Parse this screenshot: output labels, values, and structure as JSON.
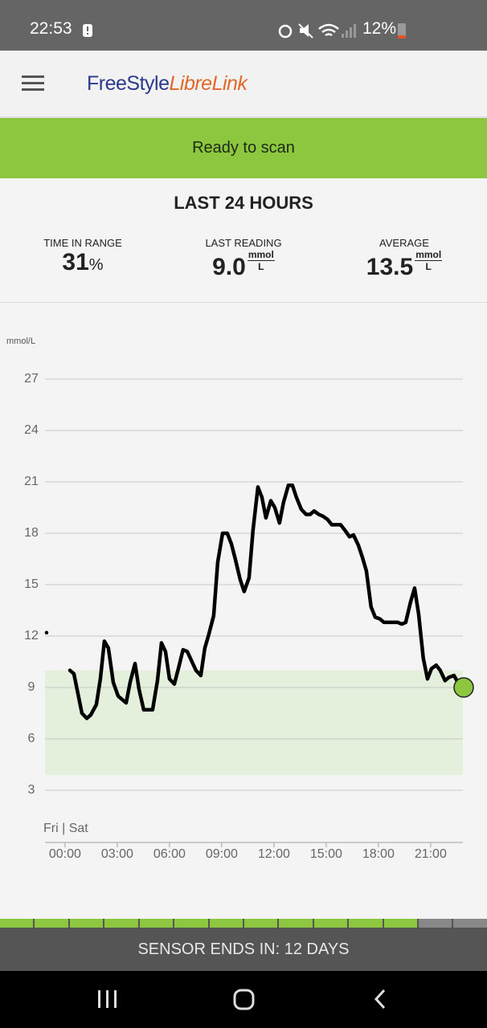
{
  "status_bar": {
    "time": "22:53",
    "battery": "12%"
  },
  "header": {
    "brand_first": "FreeStyle",
    "brand_second": "LibreLink"
  },
  "banner": {
    "text": "Ready to scan"
  },
  "summary": {
    "title": "LAST 24 HOURS",
    "items": [
      {
        "label": "TIME IN RANGE",
        "value": "31",
        "unit": "%"
      },
      {
        "label": "LAST READING",
        "value": "9.0",
        "unit_top": "mmol",
        "unit_bottom": "L"
      },
      {
        "label": "AVERAGE",
        "value": "13.5",
        "unit_top": "mmol",
        "unit_bottom": "L"
      }
    ]
  },
  "chart_data": {
    "type": "line",
    "y_label": "mmol/L",
    "day_label": "Fri | Sat",
    "color": "#000000",
    "marker_color": "#8dc63f",
    "range_color": "#e5f0dc",
    "target_range": [
      3.9,
      10.0
    ],
    "xlim": [
      -1.15,
      22.9
    ],
    "ylim": [
      3,
      27
    ],
    "yticks": [
      3,
      6,
      9,
      12,
      15,
      18,
      21,
      24,
      27
    ],
    "xticks": [
      {
        "value": 0,
        "label": "00:00"
      },
      {
        "value": 3,
        "label": "03:00"
      },
      {
        "value": 6,
        "label": "06:00"
      },
      {
        "value": 9,
        "label": "09:00"
      },
      {
        "value": 12,
        "label": "12:00"
      },
      {
        "value": 15,
        "label": "15:00"
      },
      {
        "value": 18,
        "label": "18:00"
      },
      {
        "value": 21,
        "label": "21:00"
      }
    ],
    "grid": true,
    "x": [
      -1.06,
      -0.4,
      0.28,
      0.51,
      0.97,
      1.25,
      1.48,
      1.8,
      2.03,
      2.26,
      2.49,
      2.77,
      3.05,
      3.28,
      3.51,
      3.74,
      4.02,
      4.25,
      4.52,
      5.03,
      5.31,
      5.54,
      5.77,
      6.0,
      6.28,
      6.51,
      6.78,
      7.02,
      7.52,
      7.8,
      8.03,
      8.26,
      8.54,
      8.77,
      9.05,
      9.32,
      9.55,
      9.78,
      10.06,
      10.29,
      10.57,
      10.8,
      11.08,
      11.31,
      11.54,
      11.82,
      12.05,
      12.32,
      12.55,
      12.83,
      13.06,
      13.29,
      13.57,
      13.85,
      14.08,
      14.31,
      14.58,
      14.81,
      15.09,
      15.32,
      15.6,
      15.83,
      16.06,
      16.34,
      16.57,
      16.85,
      17.08,
      17.31,
      17.58,
      17.82,
      18.09,
      18.32,
      18.6,
      18.83,
      19.11,
      19.34,
      19.57,
      19.85,
      20.08,
      20.31,
      20.58,
      20.82,
      21.05,
      21.32,
      21.55,
      21.83,
      22.06,
      22.34,
      22.57,
      22.9
    ],
    "values": [
      12.2,
      null,
      10.0,
      9.8,
      7.5,
      7.2,
      7.4,
      8.0,
      9.5,
      11.7,
      11.3,
      9.3,
      8.5,
      8.3,
      8.1,
      9.3,
      10.4,
      8.9,
      7.7,
      7.7,
      9.4,
      11.6,
      11.1,
      9.5,
      9.2,
      10.1,
      11.2,
      11.1,
      10.0,
      9.7,
      11.3,
      12.1,
      13.2,
      16.3,
      18.0,
      18.0,
      17.4,
      16.5,
      15.3,
      14.6,
      15.4,
      18.2,
      20.7,
      20.1,
      18.9,
      19.9,
      19.5,
      18.6,
      19.8,
      20.8,
      20.8,
      20.1,
      19.4,
      19.1,
      19.1,
      19.3,
      19.1,
      19.0,
      18.8,
      18.5,
      18.5,
      18.5,
      18.2,
      17.8,
      17.9,
      17.3,
      16.6,
      15.8,
      13.7,
      13.1,
      13.0,
      12.8,
      12.8,
      12.8,
      12.8,
      12.7,
      12.8,
      14.0,
      14.8,
      13.3,
      10.7,
      9.5,
      10.1,
      10.3,
      10.0,
      9.4,
      9.6,
      9.7,
      9.3,
      9.0
    ]
  },
  "sensor": {
    "text": "SENSOR ENDS IN: 12 DAYS"
  }
}
